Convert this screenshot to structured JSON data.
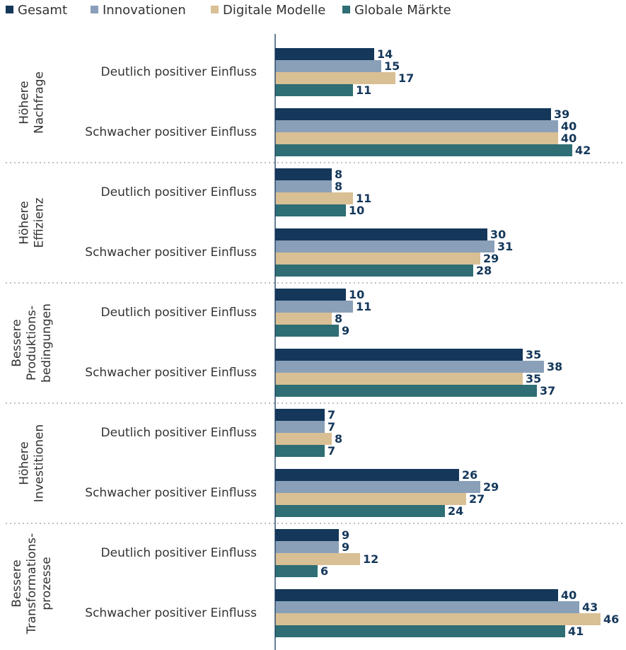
{
  "chart_data": {
    "type": "bar",
    "orientation": "horizontal",
    "groups": [
      [
        "Höhere",
        "Nachfrage"
      ],
      [
        "Höhere",
        "Effizienz"
      ],
      [
        "Bessere",
        "Produktions-",
        "bedingungen"
      ],
      [
        "Höhere",
        "Investitionen"
      ],
      [
        "Bessere",
        "Transformations-",
        "prozesse"
      ]
    ],
    "subcategories": [
      "Deutlich positiver Einfluss",
      "Schwacher positiver Einfluss"
    ],
    "series": [
      {
        "name": "Gesamt",
        "color": "#14375a",
        "values": [
          14,
          39,
          8,
          30,
          10,
          35,
          7,
          26,
          9,
          40
        ]
      },
      {
        "name": "Innovationen",
        "color": "#8aa0b8",
        "values": [
          15,
          40,
          8,
          31,
          11,
          38,
          7,
          29,
          9,
          43
        ]
      },
      {
        "name": "Digitale Modelle",
        "color": "#d9bf94",
        "values": [
          17,
          40,
          11,
          29,
          8,
          35,
          8,
          27,
          12,
          46
        ]
      },
      {
        "name": "Globale Märkte",
        "color": "#2e6e74",
        "values": [
          11,
          42,
          10,
          28,
          9,
          37,
          7,
          24,
          6,
          41
        ]
      }
    ],
    "xlim": [
      0,
      50
    ],
    "legend": "top-left"
  }
}
